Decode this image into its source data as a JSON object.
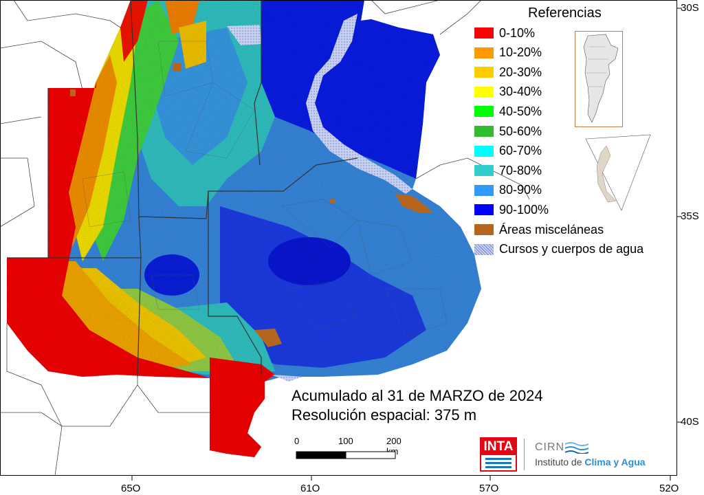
{
  "title_text": {
    "line1": "Acumulado al 31 de MARZO de 2024",
    "line2": "Resolución espacial: 375 m"
  },
  "legend": {
    "title": "Referencias",
    "items": [
      {
        "label": "0-10%",
        "color": "#ff0000"
      },
      {
        "label": "10-20%",
        "color": "#ff9900"
      },
      {
        "label": "20-30%",
        "color": "#ffcc00"
      },
      {
        "label": "30-40%",
        "color": "#ffff00"
      },
      {
        "label": "40-50%",
        "color": "#00ff00"
      },
      {
        "label": "50-60%",
        "color": "#33bb33"
      },
      {
        "label": "60-70%",
        "color": "#00ffff"
      },
      {
        "label": "70-80%",
        "color": "#33cccc"
      },
      {
        "label": "80-90%",
        "color": "#3399ff"
      },
      {
        "label": "90-100%",
        "color": "#0000ff"
      },
      {
        "label": "Áreas misceláneas",
        "color": "#b5651d"
      },
      {
        "label": "Cursos y cuerpos de agua",
        "color": "#b8c4ee"
      }
    ]
  },
  "axes": {
    "latitudes": [
      "30S",
      "35S",
      "40S"
    ],
    "longitudes": [
      "65O",
      "61O",
      "57O",
      "52O"
    ]
  },
  "scale_bar": {
    "labels": [
      "0",
      "100",
      "200 km"
    ]
  },
  "logos": {
    "inta": "INTA",
    "cirn": "CIRN",
    "cirn_sub_prefix": "Instituto de ",
    "cirn_sub_bold": "Clima y Agua"
  }
}
